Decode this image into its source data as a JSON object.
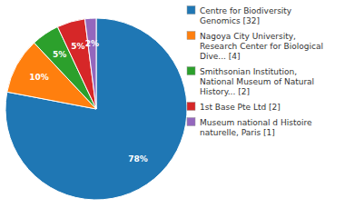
{
  "chart_data": {
    "type": "pie",
    "categories": [
      "Centre for Biodiversity\nGenomics [32]",
      "Nagoya City University,\nResearch Center for Biological\nDive... [4]",
      "Smithsonian Institution,\nNational Museum of Natural\nHistory... [2]",
      "1st Base Pte Ltd [2]",
      "Museum national d Histoire\nnaturelle, Paris [1]"
    ],
    "values": [
      78,
      10,
      5,
      5,
      2
    ],
    "value_labels": [
      "78%",
      "10%",
      "5%",
      "5%",
      "2%"
    ],
    "data_labels": true,
    "legend": "right"
  }
}
